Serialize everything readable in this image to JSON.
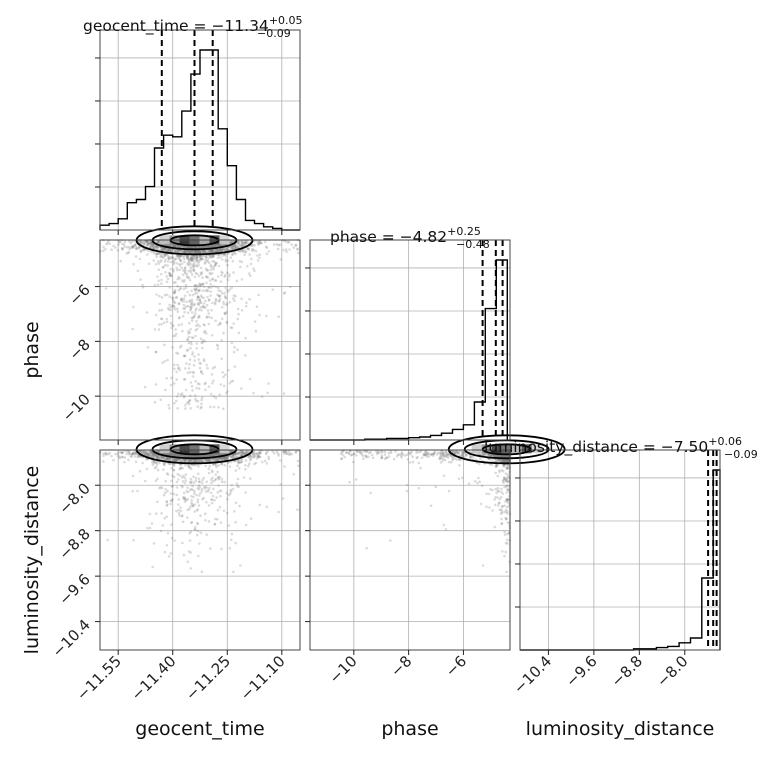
{
  "chart_data": {
    "type": "corner",
    "parameters": [
      "geocent_time",
      "phase",
      "luminosity_distance"
    ],
    "titles": [
      {
        "parameter": "geocent_time",
        "median": "−11.34",
        "plus": "+0.05",
        "minus": "−0.09"
      },
      {
        "parameter": "phase",
        "median": "−4.82",
        "plus": "+0.25",
        "minus": "−0.48"
      },
      {
        "parameter": "luminosity_distance",
        "median": "−7.50",
        "plus": "+0.06",
        "minus": "−0.09"
      }
    ],
    "ranges": {
      "geocent_time": [
        -11.6,
        -11.05
      ],
      "phase": [
        -11.6,
        -4.3
      ],
      "luminosity_distance": [
        -10.9,
        -7.38
      ]
    },
    "tick_labels": {
      "geocent_time": [
        "−11.55",
        "−11.40",
        "−11.25",
        "−11.10"
      ],
      "phase": [
        "−10",
        "−8",
        "−6"
      ],
      "luminosity_distance": [
        "−10.4",
        "−9.6",
        "−8.8",
        "−8.0"
      ]
    },
    "ticks": {
      "geocent_time": [
        -11.55,
        -11.4,
        -11.25,
        -11.1
      ],
      "phase": [
        -10,
        -8,
        -6
      ],
      "luminosity_distance": [
        -10.4,
        -9.6,
        -8.8,
        -8.0
      ]
    },
    "quantiles": {
      "geocent_time": [
        -11.43,
        -11.34,
        -11.29
      ],
      "phase": [
        -5.3,
        -4.82,
        -4.57
      ],
      "luminosity_distance": [
        -7.59,
        -7.5,
        -7.44
      ]
    },
    "histograms": {
      "geocent_time": {
        "edges": [
          -11.6,
          -11.575,
          -11.55,
          -11.525,
          -11.5,
          -11.475,
          -11.45,
          -11.425,
          -11.4,
          -11.375,
          -11.35,
          -11.325,
          -11.3,
          -11.275,
          -11.25,
          -11.225,
          -11.2,
          -11.175,
          -11.15,
          -11.125,
          -11.1,
          -11.075,
          -11.05
        ],
        "counts": [
          3,
          4,
          7,
          17,
          19,
          27,
          51,
          59,
          58,
          74,
          97,
          112,
          112,
          63,
          40,
          19,
          6,
          4,
          2,
          1,
          0,
          0
        ]
      },
      "phase": {
        "edges": [
          -11.6,
          -11.2,
          -10.8,
          -10.4,
          -10.0,
          -9.6,
          -9.2,
          -8.8,
          -8.4,
          -8.0,
          -7.6,
          -7.2,
          -6.8,
          -6.4,
          -6.0,
          -5.6,
          -5.2,
          -4.8,
          -4.4
        ],
        "counts": [
          0,
          0,
          0,
          0,
          0,
          1,
          1,
          2,
          2,
          3,
          4,
          6,
          9,
          14,
          20,
          50,
          173,
          237
        ]
      },
      "luminosity_distance": {
        "edges": [
          -10.9,
          -10.7,
          -10.5,
          -10.3,
          -10.1,
          -9.9,
          -9.7,
          -9.5,
          -9.3,
          -9.1,
          -8.9,
          -8.7,
          -8.5,
          -8.3,
          -8.1,
          -7.9,
          -7.7,
          -7.5,
          -7.38
        ],
        "counts": [
          0,
          0,
          0,
          0,
          0,
          0,
          0,
          0,
          0,
          0,
          1,
          1,
          2,
          3,
          6,
          10,
          60,
          150
        ]
      }
    },
    "grid": true
  }
}
